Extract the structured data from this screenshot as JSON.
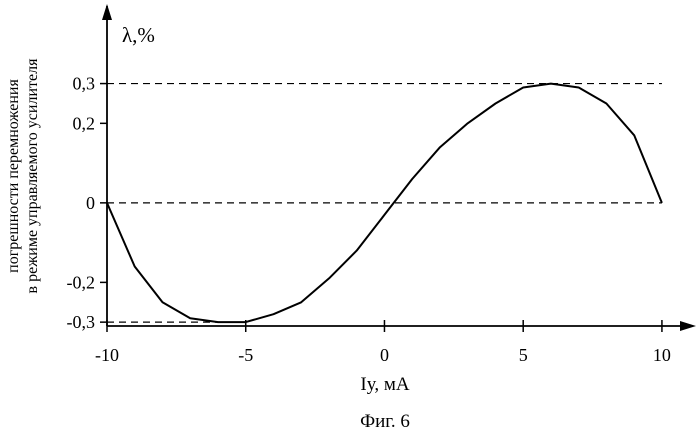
{
  "chart_data": {
    "type": "line",
    "ylabel_unit": "λ,%",
    "ylabel_line1": "погрешности перемножения",
    "ylabel_line2": "в режиме управляемого усилителя",
    "xlabel": "Iу, мА",
    "caption": "Фиг. 6",
    "xlim": [
      -10,
      11.3
    ],
    "ylim": [
      -0.36,
      0.48
    ],
    "x_ticks": [
      {
        "value": -10,
        "label": "-10"
      },
      {
        "value": -5,
        "label": "-5"
      },
      {
        "value": 0,
        "label": "0"
      },
      {
        "value": 5,
        "label": "5"
      },
      {
        "value": 10,
        "label": "10"
      }
    ],
    "y_ticks": [
      {
        "value": 0.3,
        "label": "0,3"
      },
      {
        "value": 0.2,
        "label": "0,2"
      },
      {
        "value": 0,
        "label": "0"
      },
      {
        "value": -0.2,
        "label": "-0,2"
      },
      {
        "value": -0.3,
        "label": "-0,3"
      }
    ],
    "reference_lines": [
      {
        "y": 0.3,
        "x_from": -10,
        "x_to": 10
      },
      {
        "y": 0,
        "x_from": -10,
        "x_to": 10
      },
      {
        "y": -0.3,
        "x_from": -10,
        "x_to": -6
      }
    ],
    "series": [
      {
        "x": [
          -10,
          -9,
          -8,
          -7,
          -6,
          -5,
          -4,
          -3,
          -2,
          -1,
          0,
          1,
          2,
          3,
          4,
          5,
          6,
          7,
          8,
          9,
          10
        ],
        "y": [
          0.0,
          -0.16,
          -0.25,
          -0.29,
          -0.3,
          -0.3,
          -0.28,
          -0.25,
          -0.19,
          -0.12,
          -0.03,
          0.06,
          0.14,
          0.2,
          0.25,
          0.29,
          0.3,
          0.29,
          0.25,
          0.17,
          0.0
        ]
      }
    ]
  }
}
